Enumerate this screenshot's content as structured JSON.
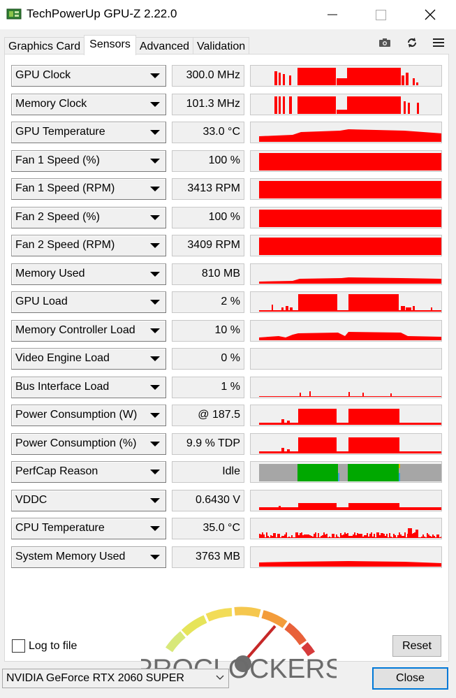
{
  "window": {
    "title": "TechPowerUp GPU-Z 2.22.0"
  },
  "tabs": [
    {
      "label": "Graphics Card",
      "active": false
    },
    {
      "label": "Sensors",
      "active": true
    },
    {
      "label": "Advanced",
      "active": false
    },
    {
      "label": "Validation",
      "active": false
    }
  ],
  "toolbar_icons": [
    "camera-icon",
    "refresh-icon",
    "menu-icon"
  ],
  "colors": {
    "graph_red": "#ff0000",
    "perfcap_idle": "#a6a6a6",
    "perfcap_green": "#00a800",
    "accent": "#0078d7"
  },
  "sensors": [
    {
      "name": "GPU Clock",
      "value": "300.0 MHz"
    },
    {
      "name": "Memory Clock",
      "value": "101.3 MHz"
    },
    {
      "name": "GPU Temperature",
      "value": "33.0 °C"
    },
    {
      "name": "Fan 1 Speed (%)",
      "value": "100 %"
    },
    {
      "name": "Fan 1 Speed (RPM)",
      "value": "3413 RPM"
    },
    {
      "name": "Fan 2 Speed (%)",
      "value": "100 %"
    },
    {
      "name": "Fan 2 Speed (RPM)",
      "value": "3409 RPM"
    },
    {
      "name": "Memory Used",
      "value": "810 MB"
    },
    {
      "name": "GPU Load",
      "value": "2 %"
    },
    {
      "name": "Memory Controller Load",
      "value": "10 %"
    },
    {
      "name": "Video Engine Load",
      "value": "0 %"
    },
    {
      "name": "Bus Interface Load",
      "value": "1 %"
    },
    {
      "name": "Power Consumption (W)",
      "value": "@ 187.5"
    },
    {
      "name": "Power Consumption (%)",
      "value": "9.9 % TDP"
    },
    {
      "name": "PerfCap Reason",
      "value": "Idle"
    },
    {
      "name": "VDDC",
      "value": "0.6430 V"
    },
    {
      "name": "CPU Temperature",
      "value": "35.0 °C"
    },
    {
      "name": "System Memory Used",
      "value": "3763 MB"
    }
  ],
  "logo": {
    "text": "PROCLOCKERS"
  },
  "footer": {
    "log_label": "Log to file",
    "log_checked": false,
    "reset_label": "Reset",
    "gpu_name": "NVIDIA GeForce RTX 2060 SUPER",
    "close_label": "Close"
  }
}
